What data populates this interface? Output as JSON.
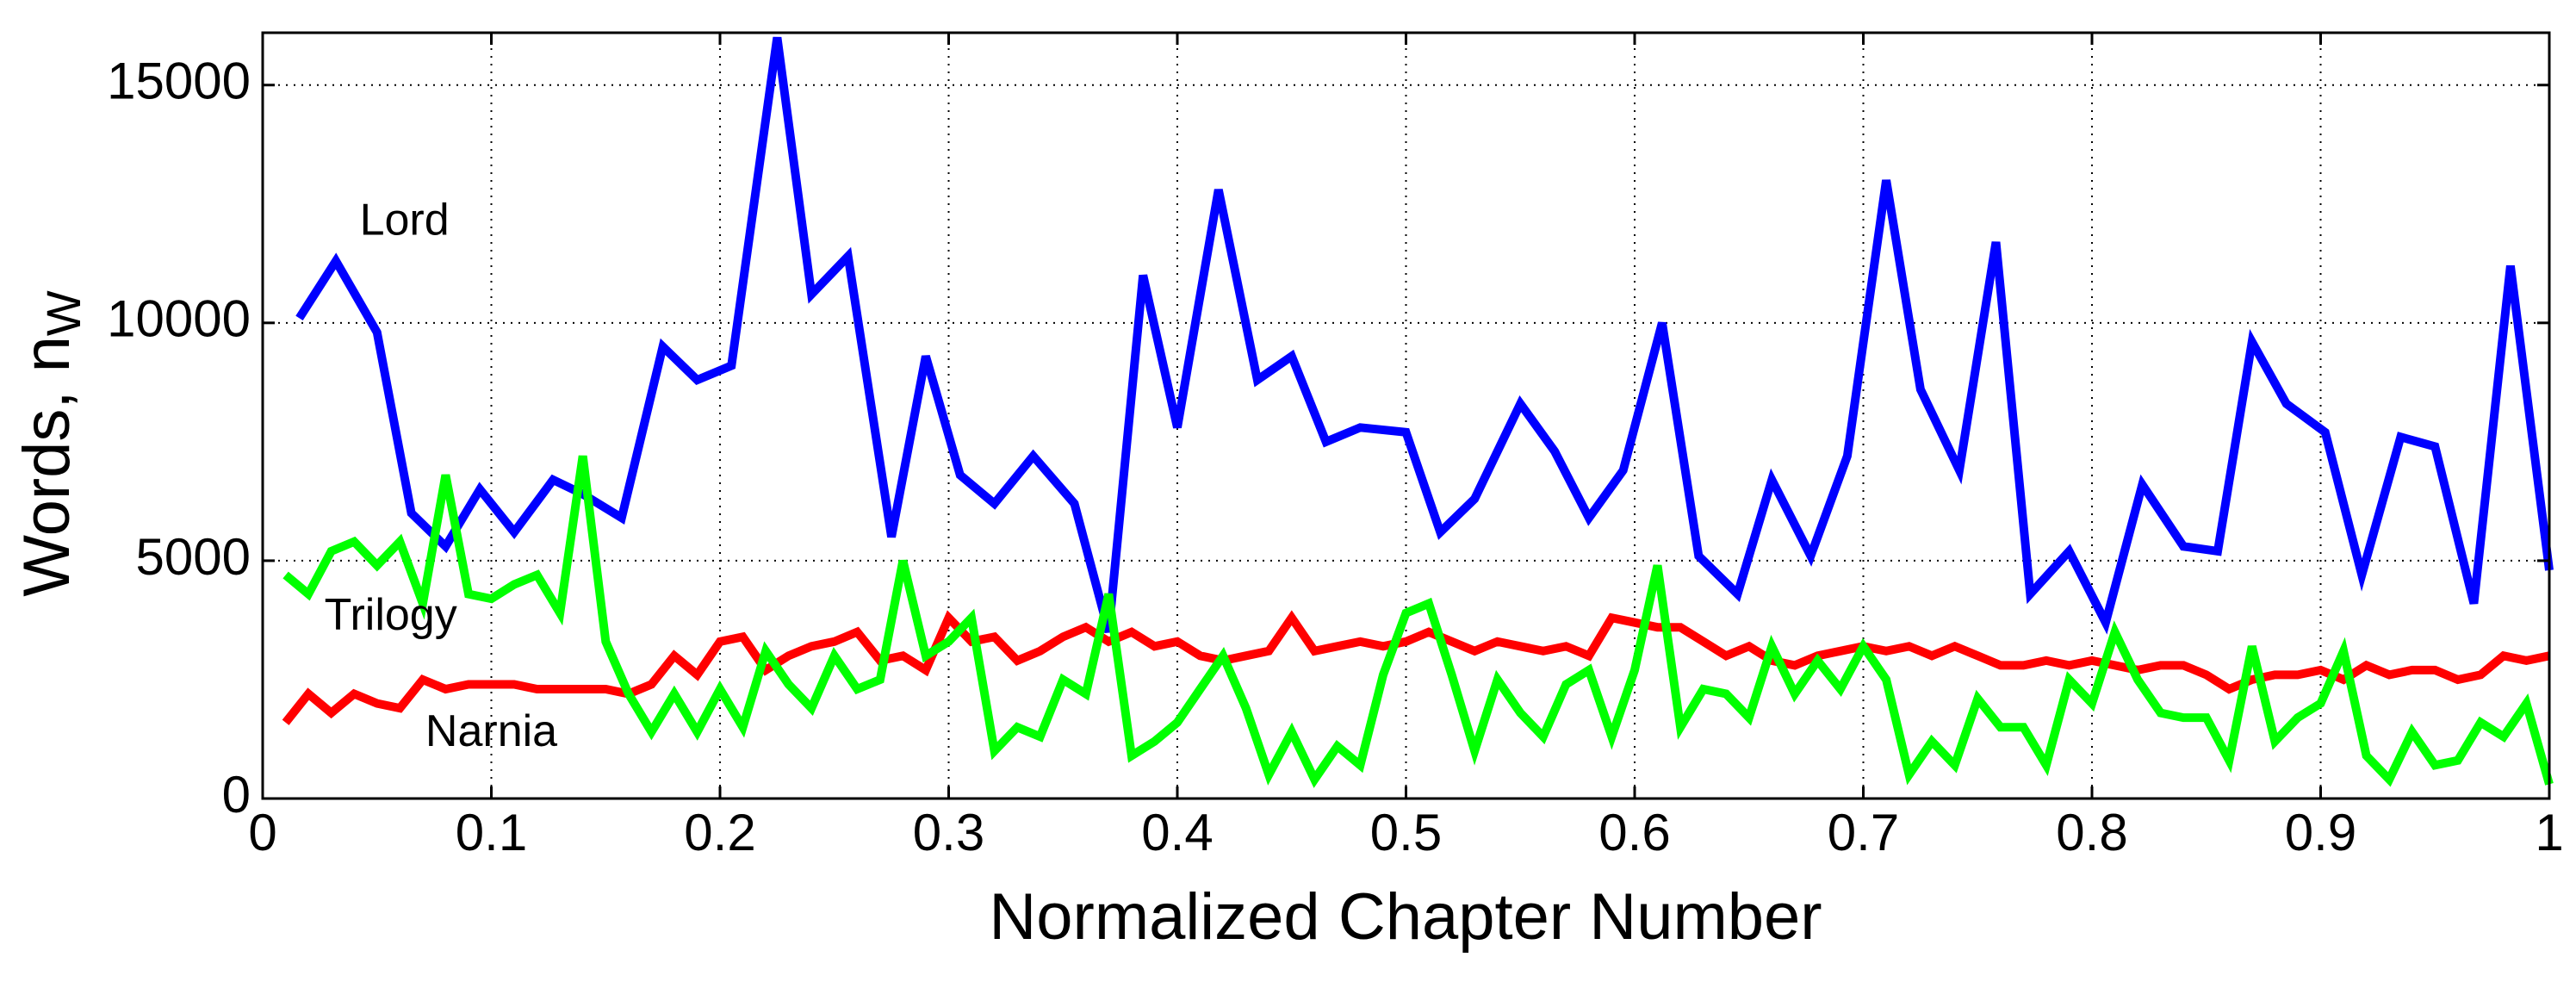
{
  "chart_data": {
    "type": "line",
    "xlabel": "Normalized Chapter Number",
    "ylabel": "Words, n",
    "ylabel_subscript": "W",
    "annotations": [
      "Lord",
      "Trilogy",
      "Narnia"
    ],
    "xlim": [
      0,
      1
    ],
    "xticks": [
      0,
      0.1,
      0.2,
      0.3,
      0.4,
      0.5,
      0.6,
      0.7,
      0.8,
      0.9,
      1
    ],
    "ylim": [
      0,
      16100
    ],
    "yticks": [
      0,
      5000,
      10000,
      15000
    ],
    "grid": true,
    "series": [
      {
        "color": "#0000ff",
        "x": [
          0.016,
          0.032,
          0.05,
          0.065,
          0.08,
          0.095,
          0.11,
          0.127,
          0.14,
          0.157,
          0.175,
          0.19,
          0.205,
          0.225,
          0.24,
          0.256,
          0.275,
          0.29,
          0.305,
          0.32,
          0.337,
          0.355,
          0.37,
          0.385,
          0.4,
          0.418,
          0.435,
          0.45,
          0.465,
          0.48,
          0.5,
          0.515,
          0.53,
          0.55,
          0.565,
          0.58,
          0.595,
          0.612,
          0.628,
          0.645,
          0.66,
          0.677,
          0.693,
          0.71,
          0.725,
          0.742,
          0.758,
          0.773,
          0.79,
          0.806,
          0.822,
          0.84,
          0.855,
          0.87,
          0.885,
          0.902,
          0.918,
          0.935,
          0.95,
          0.967,
          0.983,
          1.0
        ],
        "values": [
          10100,
          11300,
          9800,
          6000,
          5300,
          6500,
          5600,
          6700,
          6400,
          5900,
          9500,
          8800,
          9100,
          16000,
          10600,
          11400,
          5500,
          9300,
          6800,
          6200,
          7200,
          6200,
          3500,
          11000,
          7800,
          12800,
          8800,
          9300,
          7500,
          7800,
          7700,
          5600,
          6300,
          8300,
          7300,
          5900,
          6900,
          10000,
          5100,
          4300,
          6700,
          5100,
          7200,
          13000,
          8600,
          6900,
          11700,
          4300,
          5200,
          3700,
          6600,
          5300,
          5200,
          9600,
          8300,
          7700,
          4700,
          7600,
          7400,
          4100,
          11200,
          4800
        ]
      },
      {
        "color": "#ff0000",
        "x": [
          0.01,
          0.02,
          0.03,
          0.04,
          0.05,
          0.06,
          0.07,
          0.08,
          0.09,
          0.1,
          0.11,
          0.12,
          0.13,
          0.14,
          0.15,
          0.16,
          0.17,
          0.18,
          0.19,
          0.2,
          0.21,
          0.22,
          0.23,
          0.24,
          0.25,
          0.26,
          0.27,
          0.28,
          0.29,
          0.3,
          0.31,
          0.32,
          0.33,
          0.34,
          0.35,
          0.36,
          0.37,
          0.38,
          0.39,
          0.4,
          0.41,
          0.42,
          0.43,
          0.44,
          0.45,
          0.46,
          0.47,
          0.48,
          0.49,
          0.5,
          0.51,
          0.52,
          0.53,
          0.54,
          0.55,
          0.56,
          0.57,
          0.58,
          0.59,
          0.6,
          0.61,
          0.62,
          0.63,
          0.64,
          0.65,
          0.66,
          0.67,
          0.68,
          0.69,
          0.7,
          0.71,
          0.72,
          0.73,
          0.74,
          0.75,
          0.76,
          0.77,
          0.78,
          0.79,
          0.8,
          0.81,
          0.82,
          0.83,
          0.84,
          0.85,
          0.86,
          0.87,
          0.88,
          0.89,
          0.9,
          0.91,
          0.92,
          0.93,
          0.94,
          0.95,
          0.96,
          0.97,
          0.98,
          0.99,
          1.0
        ],
        "values": [
          1600,
          2200,
          1800,
          2200,
          2000,
          1900,
          2500,
          2300,
          2400,
          2400,
          2400,
          2300,
          2300,
          2300,
          2300,
          2200,
          2400,
          3000,
          2600,
          3300,
          3400,
          2700,
          3000,
          3200,
          3300,
          3500,
          2900,
          3000,
          2700,
          3800,
          3300,
          3400,
          2900,
          3100,
          3400,
          3600,
          3300,
          3500,
          3200,
          3300,
          3000,
          2900,
          3000,
          3100,
          3800,
          3100,
          3200,
          3300,
          3200,
          3300,
          3500,
          3300,
          3100,
          3300,
          3200,
          3100,
          3200,
          3000,
          3800,
          3700,
          3600,
          3600,
          3300,
          3000,
          3200,
          2900,
          2800,
          3000,
          3100,
          3200,
          3100,
          3200,
          3000,
          3200,
          3000,
          2800,
          2800,
          2900,
          2800,
          2900,
          2800,
          2700,
          2800,
          2800,
          2600,
          2300,
          2500,
          2600,
          2600,
          2700,
          2500,
          2800,
          2600,
          2700,
          2700,
          2500,
          2600,
          3000,
          2900,
          3000
        ]
      },
      {
        "color": "#00ff00",
        "x": [
          0.01,
          0.02,
          0.03,
          0.04,
          0.05,
          0.06,
          0.07,
          0.08,
          0.09,
          0.1,
          0.11,
          0.12,
          0.13,
          0.14,
          0.15,
          0.16,
          0.17,
          0.18,
          0.19,
          0.2,
          0.21,
          0.22,
          0.23,
          0.24,
          0.25,
          0.26,
          0.27,
          0.28,
          0.29,
          0.3,
          0.31,
          0.32,
          0.33,
          0.34,
          0.35,
          0.36,
          0.37,
          0.38,
          0.39,
          0.4,
          0.41,
          0.42,
          0.43,
          0.44,
          0.45,
          0.46,
          0.47,
          0.48,
          0.49,
          0.5,
          0.51,
          0.52,
          0.53,
          0.54,
          0.55,
          0.56,
          0.57,
          0.58,
          0.59,
          0.6,
          0.61,
          0.62,
          0.63,
          0.64,
          0.65,
          0.66,
          0.67,
          0.68,
          0.69,
          0.7,
          0.71,
          0.72,
          0.73,
          0.74,
          0.75,
          0.76,
          0.77,
          0.78,
          0.79,
          0.8,
          0.81,
          0.82,
          0.83,
          0.84,
          0.85,
          0.86,
          0.87,
          0.88,
          0.89,
          0.9,
          0.91,
          0.92,
          0.93,
          0.94,
          0.95,
          0.96,
          0.97,
          0.98,
          0.99,
          1.0
        ],
        "values": [
          4700,
          4300,
          5200,
          5400,
          4900,
          5400,
          4100,
          6800,
          4300,
          4200,
          4500,
          4700,
          3900,
          7200,
          3300,
          2200,
          1400,
          2200,
          1400,
          2300,
          1500,
          3100,
          2400,
          1900,
          3000,
          2300,
          2500,
          5000,
          3000,
          3300,
          3800,
          1000,
          1500,
          1300,
          2500,
          2200,
          4300,
          900,
          1200,
          1600,
          2300,
          3000,
          1900,
          500,
          1400,
          400,
          1100,
          700,
          2600,
          3900,
          4100,
          2600,
          1000,
          2500,
          1800,
          1300,
          2400,
          2700,
          1300,
          2700,
          4900,
          1500,
          2300,
          2200,
          1700,
          3200,
          2200,
          2900,
          2300,
          3200,
          2500,
          500,
          1200,
          700,
          2100,
          1500,
          1500,
          700,
          2500,
          2000,
          3500,
          2500,
          1800,
          1700,
          1700,
          800,
          3200,
          1200,
          1700,
          2000,
          3100,
          900,
          400,
          1400,
          700,
          800,
          1600,
          1300,
          2000,
          300
        ]
      }
    ]
  }
}
